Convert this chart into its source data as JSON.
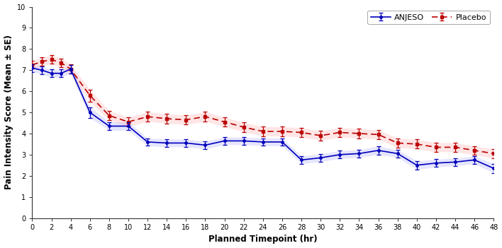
{
  "xlabel": "Planned Timepoint (hr)",
  "ylabel": "Pain Intensity Score (Mean ± SE)",
  "xlim": [
    0,
    48
  ],
  "ylim": [
    0,
    10
  ],
  "yticks": [
    0,
    1,
    2,
    3,
    4,
    5,
    6,
    7,
    8,
    9,
    10
  ],
  "xticks": [
    0,
    2,
    4,
    6,
    8,
    10,
    12,
    14,
    16,
    18,
    20,
    22,
    24,
    26,
    28,
    30,
    32,
    34,
    36,
    38,
    40,
    42,
    44,
    46,
    48
  ],
  "anjeso_color": "#0000bb",
  "placebo_color": "#bb0000",
  "anjeso_fill": "#aaaaff",
  "placebo_fill": "#ffaaaa",
  "anjeso_x": [
    0,
    1,
    2,
    3,
    4,
    6,
    8,
    10,
    12,
    14,
    16,
    18,
    20,
    22,
    24,
    26,
    28,
    30,
    32,
    34,
    36,
    38,
    40,
    42,
    44,
    46,
    48
  ],
  "anjeso_y": [
    7.1,
    7.0,
    6.85,
    6.85,
    7.05,
    5.0,
    4.35,
    4.35,
    3.6,
    3.55,
    3.55,
    3.45,
    3.65,
    3.65,
    3.6,
    3.6,
    2.75,
    2.85,
    3.0,
    3.05,
    3.2,
    3.05,
    2.5,
    2.6,
    2.65,
    2.75,
    2.35
  ],
  "anjeso_se": [
    0.18,
    0.18,
    0.18,
    0.18,
    0.2,
    0.25,
    0.2,
    0.2,
    0.18,
    0.18,
    0.18,
    0.18,
    0.18,
    0.18,
    0.18,
    0.18,
    0.18,
    0.18,
    0.18,
    0.18,
    0.2,
    0.18,
    0.2,
    0.18,
    0.18,
    0.18,
    0.22
  ],
  "placebo_x": [
    0,
    1,
    2,
    3,
    4,
    6,
    8,
    10,
    12,
    14,
    16,
    18,
    20,
    22,
    24,
    26,
    28,
    30,
    32,
    34,
    36,
    38,
    40,
    42,
    44,
    46,
    48
  ],
  "placebo_y": [
    7.25,
    7.4,
    7.5,
    7.35,
    7.05,
    5.8,
    4.85,
    4.55,
    4.8,
    4.7,
    4.65,
    4.8,
    4.55,
    4.3,
    4.1,
    4.1,
    4.05,
    3.9,
    4.05,
    4.0,
    3.95,
    3.55,
    3.5,
    3.35,
    3.35,
    3.2,
    3.05
  ],
  "placebo_se": [
    0.18,
    0.2,
    0.2,
    0.2,
    0.22,
    0.28,
    0.22,
    0.22,
    0.22,
    0.22,
    0.22,
    0.22,
    0.22,
    0.22,
    0.22,
    0.22,
    0.22,
    0.22,
    0.22,
    0.22,
    0.22,
    0.22,
    0.22,
    0.22,
    0.22,
    0.2,
    0.22
  ],
  "legend_labels": [
    "ANJESO",
    "Placebo"
  ],
  "background_color": "#ffffff"
}
